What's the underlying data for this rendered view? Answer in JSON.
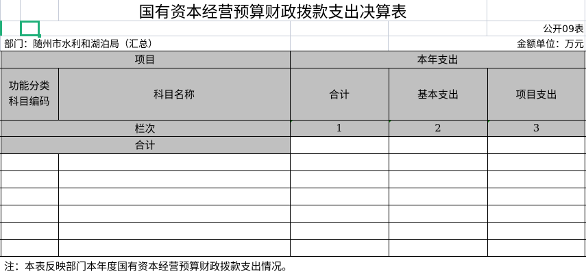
{
  "title": "国有资本经营预算财政拨款支出决算表",
  "form_code": "公开09表",
  "department": "部门：随州市水利和湖泊局（汇总）",
  "unit": "金额单位：万元",
  "header": {
    "item": "项目",
    "current_year": "本年支出",
    "func_code": "功能分类\n科目编码",
    "subject_name": "科目名称",
    "total": "合计",
    "basic": "基本支出",
    "project": "项目支出"
  },
  "column_row": {
    "label": "栏次",
    "cols": [
      "1",
      "2",
      "3"
    ]
  },
  "total_row": {
    "label": "合计"
  },
  "note": "注：本表反映部门本年度国有资本经营预算财政拨款支出情况。",
  "colors": {
    "header_fill": "#c0c0c0",
    "selection": "#21b07a"
  }
}
